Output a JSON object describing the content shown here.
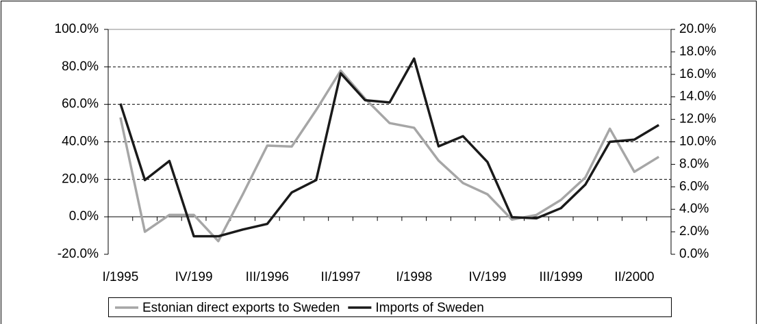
{
  "chart_data": {
    "type": "line",
    "categories": [
      "I/1995",
      null,
      null,
      "IV/199",
      null,
      null,
      "III/1996",
      null,
      null,
      "II/1997",
      null,
      null,
      "I/1998",
      null,
      null,
      "IV/199",
      null,
      null,
      "III/1999",
      null,
      null,
      "II/2000",
      null
    ],
    "series": [
      {
        "name": "Estonian direct exports to Sweden",
        "color": "#a6a6a6",
        "axis": "y",
        "values": [
          53,
          -8,
          1,
          1,
          -13,
          12,
          38,
          37.5,
          57,
          78,
          63,
          50,
          47.5,
          30,
          18,
          12,
          -1.5,
          1,
          9,
          21,
          47,
          24,
          32
        ]
      },
      {
        "name": "Imports of Sweden",
        "color": "#1a1a1a",
        "axis": "y2",
        "values": [
          13.4,
          6.6,
          8.3,
          1.6,
          1.6,
          2.2,
          2.7,
          5.5,
          6.6,
          16.1,
          13.7,
          13.5,
          17.4,
          9.6,
          10.5,
          8.2,
          3.3,
          3.2,
          4.1,
          6.2,
          10.0,
          10.2,
          11.5
        ]
      }
    ],
    "ylim": [
      -20,
      100
    ],
    "yticks": [
      {
        "value": -20,
        "label": "-20.0%"
      },
      {
        "value": 0,
        "label": "0.0%"
      },
      {
        "value": 20,
        "label": "20.0%"
      },
      {
        "value": 40,
        "label": "40.0%"
      },
      {
        "value": 60,
        "label": "60.0%"
      },
      {
        "value": 80,
        "label": "80.0%"
      },
      {
        "value": 100,
        "label": "100.0%"
      }
    ],
    "y2lim": [
      0,
      20
    ],
    "y2ticks": [
      {
        "value": 0,
        "label": "0.0%"
      },
      {
        "value": 2,
        "label": "2.0%"
      },
      {
        "value": 4,
        "label": "4.0%"
      },
      {
        "value": 6,
        "label": "6.0%"
      },
      {
        "value": 8,
        "label": "8.0%"
      },
      {
        "value": 10,
        "label": "10.0%"
      },
      {
        "value": 12,
        "label": "12.0%"
      },
      {
        "value": 14,
        "label": "14.0%"
      },
      {
        "value": 16,
        "label": "16.0%"
      },
      {
        "value": 18,
        "label": "18.0%"
      },
      {
        "value": 20,
        "label": "20.0%"
      }
    ],
    "grid": true,
    "legend": "bottom"
  }
}
